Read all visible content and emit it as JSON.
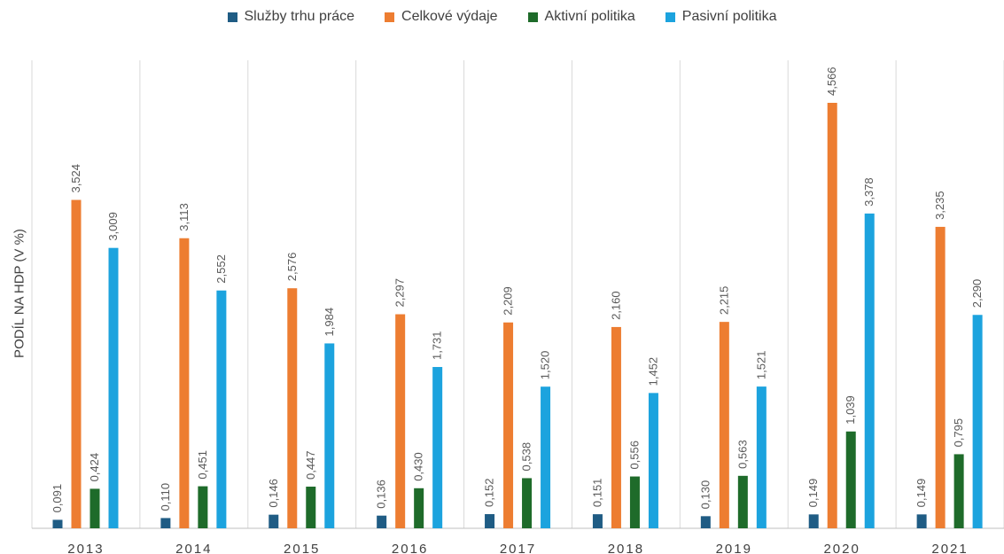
{
  "chart_data": {
    "type": "bar",
    "ylabel": "PODÍL NA HDP (V %)",
    "xlabel": "",
    "title": "",
    "categories": [
      "2013",
      "2014",
      "2015",
      "2016",
      "2017",
      "2018",
      "2019",
      "2020",
      "2021"
    ],
    "ylim": [
      0,
      5
    ],
    "grid": false,
    "legend_position": "top",
    "series": [
      {
        "name": "Služby trhu práce",
        "color": "#1f5c84",
        "values": [
          0.091,
          0.11,
          0.146,
          0.136,
          0.152,
          0.151,
          0.13,
          0.149,
          0.149
        ],
        "labels": [
          "0,091",
          "0,110",
          "0,146",
          "0,136",
          "0,152",
          "0,151",
          "0,130",
          "0,149",
          "0,149"
        ]
      },
      {
        "name": "Celkové výdaje",
        "color": "#ed7d31",
        "values": [
          3.524,
          3.113,
          2.576,
          2.297,
          2.209,
          2.16,
          2.215,
          4.566,
          3.235
        ],
        "labels": [
          "3,524",
          "3,113",
          "2,576",
          "2,297",
          "2,209",
          "2,160",
          "2,215",
          "4,566",
          "3,235"
        ]
      },
      {
        "name": "Aktivní politika",
        "color": "#1e6b2a",
        "values": [
          0.424,
          0.451,
          0.447,
          0.43,
          0.538,
          0.556,
          0.563,
          1.039,
          0.795
        ],
        "labels": [
          "0,424",
          "0,451",
          "0,447",
          "0,430",
          "0,538",
          "0,556",
          "0,563",
          "1,039",
          "0,795"
        ]
      },
      {
        "name": "Pasivní politika",
        "color": "#1ca3de",
        "values": [
          3.009,
          2.552,
          1.984,
          1.731,
          1.52,
          1.452,
          1.521,
          3.378,
          2.29
        ],
        "labels": [
          "3,009",
          "2,552",
          "1,984",
          "1,731",
          "1,520",
          "1,452",
          "1,521",
          "3,378",
          "2,290"
        ]
      }
    ]
  }
}
